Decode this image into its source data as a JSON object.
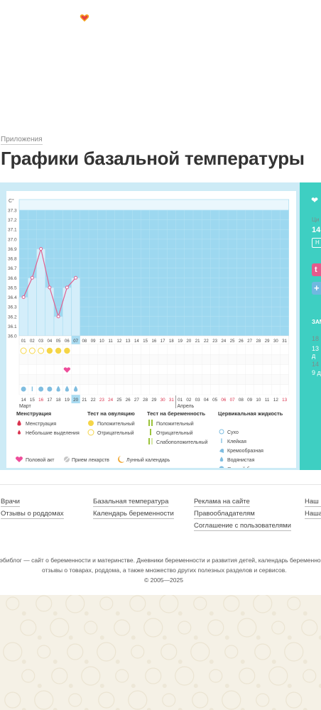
{
  "header": {
    "logo_icon": "heart-logo-icon"
  },
  "breadcrumb": "Приложения",
  "title": "Графики базальной температуры",
  "chart_data": {
    "type": "line",
    "title": "",
    "ylabel": "С°",
    "ylim": [
      36.0,
      37.3
    ],
    "y_ticks": [
      "37.3",
      "37.2",
      "37.1",
      "37.0",
      "36.9",
      "36.8",
      "36.7",
      "36.6",
      "36.5",
      "36.4",
      "36.3",
      "36.2",
      "36.1",
      "36.0"
    ],
    "x_days": [
      "01",
      "02",
      "03",
      "04",
      "05",
      "06",
      "07",
      "08",
      "09",
      "10",
      "11",
      "12",
      "13",
      "14",
      "15",
      "16",
      "17",
      "18",
      "19",
      "20",
      "21",
      "22",
      "23",
      "24",
      "25",
      "26",
      "27",
      "28",
      "29",
      "30",
      "31"
    ],
    "cycle_dates": [
      "14",
      "15",
      "16",
      "17",
      "18",
      "19",
      "20",
      "21",
      "22",
      "23",
      "24",
      "25",
      "26",
      "27",
      "28",
      "29",
      "30",
      "31",
      "01",
      "02",
      "03",
      "04",
      "05",
      "06",
      "07",
      "08",
      "09",
      "10",
      "11",
      "12",
      "13"
    ],
    "red_date_indices": [
      2,
      9,
      10,
      16,
      17,
      23,
      24,
      30
    ],
    "highlight_day_index": 6,
    "temperatures": [
      36.4,
      36.6,
      36.9,
      36.5,
      36.2,
      36.5,
      36.6
    ],
    "months": [
      "Март",
      "Апрель"
    ],
    "ovulation_tests": {
      "positive_days": [
        4,
        5,
        6
      ],
      "negative_days": [
        1,
        2,
        3
      ]
    },
    "intercourse_days": [
      6
    ],
    "cervical_fluid": [
      {
        "day": 1,
        "kind": "egg-white"
      },
      {
        "day": 2,
        "kind": "sticky"
      },
      {
        "day": 3,
        "kind": "egg-white"
      },
      {
        "day": 4,
        "kind": "egg-white"
      },
      {
        "day": 5,
        "kind": "watery"
      },
      {
        "day": 6,
        "kind": "watery"
      },
      {
        "day": 7,
        "kind": "watery"
      }
    ],
    "colors": {
      "fill": "#9dd8f0",
      "point": "#e06090",
      "positive": "#f5d547",
      "heart": "#ee4d9a",
      "highlight": "#aadcf2"
    }
  },
  "legend": {
    "menstruation": {
      "title": "Менструация",
      "items": [
        "Менструация",
        "Небольшие выделения"
      ]
    },
    "ovulation": {
      "title": "Тест на овуляцию",
      "items": [
        "Положительный",
        "Отрицательный"
      ]
    },
    "pregnancy": {
      "title": "Тест на беременность",
      "items": [
        "Положительный",
        "Отрицательный",
        "Слабоположительный"
      ]
    },
    "cervical": {
      "title": "Цервикальная жидкость",
      "items": [
        "Сухо",
        "Клейкая",
        "Кремообразная",
        "Водянистая",
        "Яичный белок"
      ]
    },
    "bottom": [
      "Половой акт",
      "Прием лекарств",
      "Лунный календарь"
    ]
  },
  "right_panel": {
    "label_small": "Ци",
    "number": "14",
    "button": "Н",
    "tumblr": "t",
    "plus": "+",
    "section": "ЗАМ",
    "date1": "18",
    "val1": "13 д",
    "date2": "14",
    "val2": "9 д"
  },
  "footer": {
    "col1": [
      "Врачи",
      "Отзывы о роддомах"
    ],
    "col2": [
      "Базальная температура",
      "Календарь беременности"
    ],
    "col3": [
      "Реклама на сайте",
      "Правообладателям",
      "Соглашение с пользователями"
    ],
    "col4": [
      "Наш к",
      "Наша"
    ],
    "about1": "Бэбиблог — сайт о беременности и материнстве. Дневники беременности и развития детей, календарь беременности,",
    "about2": "отзывы о товарах, роддома, а также множество других полезных разделов и сервисов.",
    "copyright": "© 2005—2025"
  }
}
